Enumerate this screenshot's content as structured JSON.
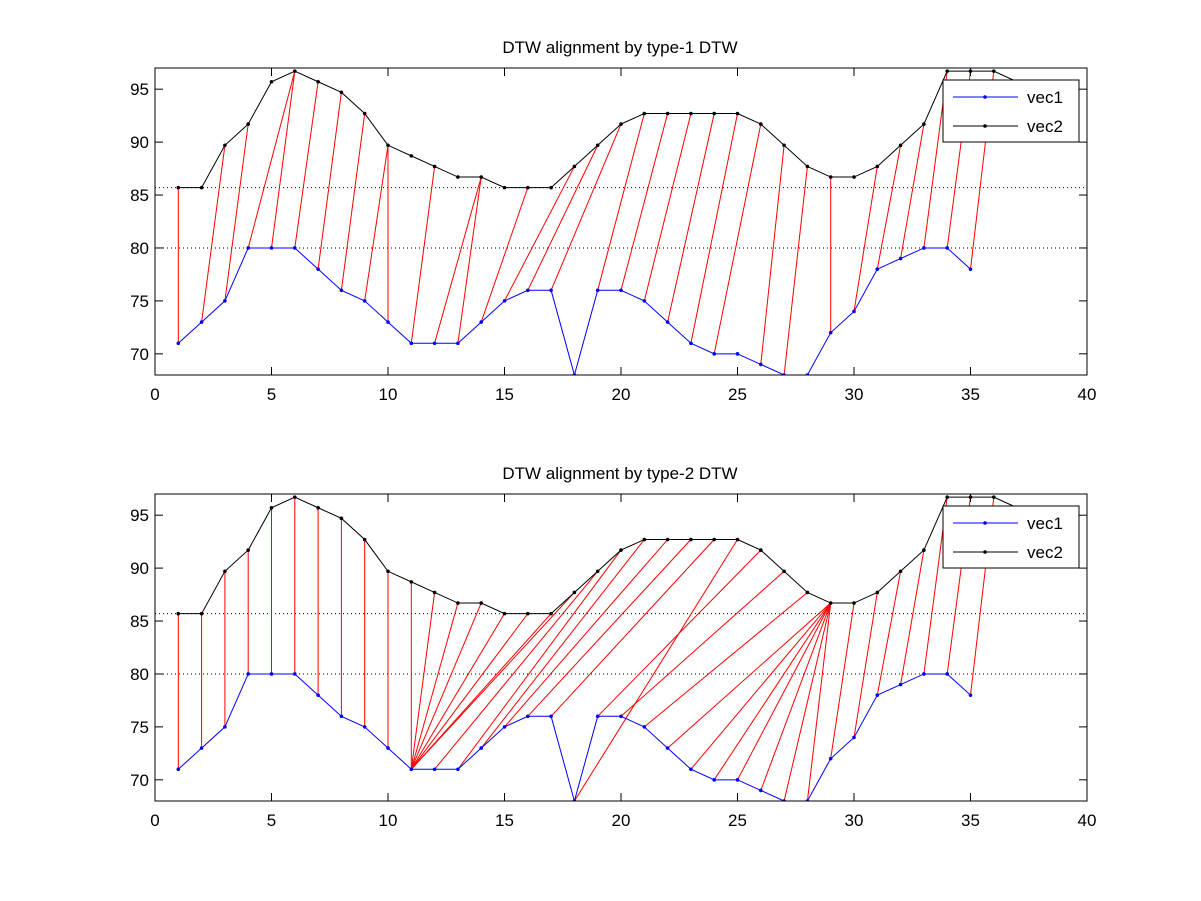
{
  "chart_data": [
    {
      "type": "line",
      "title": "DTW alignment by type-1 DTW",
      "xlabel": "",
      "ylabel": "",
      "xlim": [
        0,
        40
      ],
      "ylim": [
        68,
        97
      ],
      "xticks": [
        0,
        5,
        10,
        15,
        20,
        25,
        30,
        35,
        40
      ],
      "yticks": [
        70,
        75,
        80,
        85,
        90,
        95
      ],
      "dotted_gridlines_y": [
        80,
        85.7
      ],
      "legend": {
        "placement": "top-right",
        "entries": [
          "vec1",
          "vec2"
        ]
      },
      "series": [
        {
          "name": "vec1",
          "color": "#0000ff",
          "x": [
            1,
            2,
            3,
            4,
            5,
            6,
            7,
            8,
            9,
            10,
            11,
            12,
            13,
            14,
            15,
            16,
            17,
            18,
            19,
            20,
            21,
            22,
            23,
            24,
            25,
            26,
            27,
            28,
            29,
            30,
            31,
            32,
            33,
            34,
            35
          ],
          "values": [
            71,
            73,
            75,
            80,
            80,
            80,
            78,
            76,
            75,
            73,
            71,
            71,
            71,
            73,
            75,
            76,
            76,
            68,
            76,
            76,
            75,
            73,
            71,
            70,
            70,
            69,
            68,
            68,
            72,
            74,
            78,
            79,
            80,
            80,
            78
          ]
        },
        {
          "name": "vec2",
          "color": "#000000",
          "x": [
            1,
            2,
            3,
            4,
            5,
            6,
            7,
            8,
            9,
            10,
            11,
            12,
            13,
            14,
            15,
            16,
            17,
            18,
            19,
            20,
            21,
            22,
            23,
            24,
            25,
            26,
            27,
            28,
            29,
            30,
            31,
            32,
            33,
            34,
            35,
            36,
            37
          ],
          "values": [
            85.7,
            85.7,
            89.7,
            91.7,
            95.7,
            96.7,
            95.7,
            94.7,
            92.7,
            89.7,
            88.7,
            87.7,
            86.7,
            86.7,
            85.7,
            85.7,
            85.7,
            87.7,
            89.7,
            91.7,
            92.7,
            92.7,
            92.7,
            92.7,
            92.7,
            91.7,
            89.7,
            87.7,
            86.7,
            86.7,
            87.7,
            89.7,
            91.7,
            96.7,
            96.7,
            96.7,
            95.7
          ]
        }
      ],
      "alignment": {
        "color": "#ff0000",
        "pairs": [
          [
            1,
            1
          ],
          [
            2,
            3
          ],
          [
            3,
            4
          ],
          [
            4,
            6
          ],
          [
            5,
            6
          ],
          [
            6,
            7
          ],
          [
            7,
            8
          ],
          [
            8,
            9
          ],
          [
            9,
            10
          ],
          [
            10,
            10
          ],
          [
            11,
            12
          ],
          [
            12,
            14
          ],
          [
            13,
            14
          ],
          [
            14,
            16
          ],
          [
            15,
            18
          ],
          [
            16,
            19
          ],
          [
            17,
            20
          ],
          [
            19,
            21
          ],
          [
            20,
            22
          ],
          [
            21,
            23
          ],
          [
            22,
            24
          ],
          [
            23,
            25
          ],
          [
            24,
            26
          ],
          [
            26,
            27
          ],
          [
            27,
            28
          ],
          [
            29,
            29
          ],
          [
            30,
            31
          ],
          [
            31,
            32
          ],
          [
            32,
            33
          ],
          [
            33,
            34
          ],
          [
            34,
            35
          ],
          [
            35,
            36
          ]
        ]
      }
    },
    {
      "type": "line",
      "title": "DTW alignment by type-2 DTW",
      "xlabel": "",
      "ylabel": "",
      "xlim": [
        0,
        40
      ],
      "ylim": [
        68,
        97
      ],
      "xticks": [
        0,
        5,
        10,
        15,
        20,
        25,
        30,
        35,
        40
      ],
      "yticks": [
        70,
        75,
        80,
        85,
        90,
        95
      ],
      "dotted_gridlines_y": [
        80,
        85.7
      ],
      "legend": {
        "placement": "top-right",
        "entries": [
          "vec1",
          "vec2"
        ]
      },
      "series": [
        {
          "name": "vec1",
          "color": "#0000ff",
          "x": [
            1,
            2,
            3,
            4,
            5,
            6,
            7,
            8,
            9,
            10,
            11,
            12,
            13,
            14,
            15,
            16,
            17,
            18,
            19,
            20,
            21,
            22,
            23,
            24,
            25,
            26,
            27,
            28,
            29,
            30,
            31,
            32,
            33,
            34,
            35
          ],
          "values": [
            71,
            73,
            75,
            80,
            80,
            80,
            78,
            76,
            75,
            73,
            71,
            71,
            71,
            73,
            75,
            76,
            76,
            68,
            76,
            76,
            75,
            73,
            71,
            70,
            70,
            69,
            68,
            68,
            72,
            74,
            78,
            79,
            80,
            80,
            78
          ]
        },
        {
          "name": "vec2",
          "color": "#000000",
          "x": [
            1,
            2,
            3,
            4,
            5,
            6,
            7,
            8,
            9,
            10,
            11,
            12,
            13,
            14,
            15,
            16,
            17,
            18,
            19,
            20,
            21,
            22,
            23,
            24,
            25,
            26,
            27,
            28,
            29,
            30,
            31,
            32,
            33,
            34,
            35,
            36,
            37
          ],
          "values": [
            85.7,
            85.7,
            89.7,
            91.7,
            95.7,
            96.7,
            95.7,
            94.7,
            92.7,
            89.7,
            88.7,
            87.7,
            86.7,
            86.7,
            85.7,
            85.7,
            85.7,
            87.7,
            89.7,
            91.7,
            92.7,
            92.7,
            92.7,
            92.7,
            92.7,
            91.7,
            89.7,
            87.7,
            86.7,
            86.7,
            87.7,
            89.7,
            91.7,
            96.7,
            96.7,
            96.7,
            95.7
          ]
        }
      ],
      "alignment": {
        "color": "#ff0000",
        "pairs": [
          [
            1,
            1
          ],
          [
            2,
            2
          ],
          [
            3,
            3
          ],
          [
            4,
            4
          ],
          [
            5,
            5
          ],
          [
            6,
            6
          ],
          [
            7,
            7
          ],
          [
            8,
            8
          ],
          [
            9,
            9
          ],
          [
            10,
            10
          ],
          [
            11,
            11
          ],
          [
            11,
            12
          ],
          [
            11,
            13
          ],
          [
            11,
            14
          ],
          [
            11,
            15
          ],
          [
            11,
            16
          ],
          [
            11,
            17
          ],
          [
            11,
            18
          ],
          [
            12,
            19
          ],
          [
            13,
            20
          ],
          [
            14,
            21
          ],
          [
            15,
            22
          ],
          [
            16,
            23
          ],
          [
            17,
            24
          ],
          [
            18,
            25
          ],
          [
            19,
            26
          ],
          [
            20,
            27
          ],
          [
            21,
            28
          ],
          [
            22,
            29
          ],
          [
            23,
            29
          ],
          [
            24,
            29
          ],
          [
            25,
            29
          ],
          [
            26,
            29
          ],
          [
            27,
            29
          ],
          [
            28,
            29
          ],
          [
            29,
            30
          ],
          [
            30,
            31
          ],
          [
            31,
            32
          ],
          [
            32,
            33
          ],
          [
            33,
            34
          ],
          [
            34,
            35
          ],
          [
            35,
            36
          ]
        ]
      }
    }
  ]
}
